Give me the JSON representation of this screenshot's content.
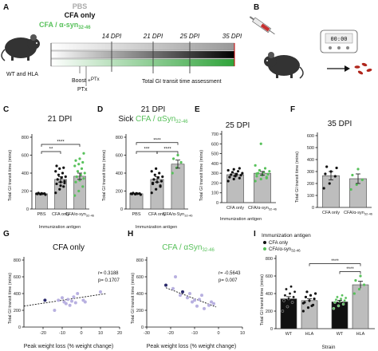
{
  "panels": {
    "A": {
      "label": "A",
      "group_top": "PBS",
      "group_mid": "CFA only",
      "group_bottom_main": "CFA / α-syn",
      "group_bottom_sub": "32-46",
      "mouse_caption": "WT and HLA",
      "days": [
        "14 DPI",
        "21 DPI",
        "25 DPI",
        "35 DPI"
      ],
      "boost_label": "Boost +",
      "ptx_label": "PTx",
      "ptx_bottom": "PTx",
      "assessment": "Total GI transit time assessment",
      "colors": {
        "pbs": "#999999",
        "cfa": "#111111",
        "syn": "#58c15b"
      }
    },
    "B": {
      "label": "B",
      "timer": "00:00"
    },
    "C": {
      "label": "C",
      "title": "21 DPI",
      "ylabel": "Total GI transit time (mins)",
      "xlabel": "Immunization antigen",
      "categories": [
        "PBS",
        "CFA only",
        "CFA/α-syn"
      ],
      "cat3_sub": "32-46",
      "sig": [
        "**",
        "****"
      ]
    },
    "D": {
      "label": "D",
      "title": "21 DPI",
      "subtitle_a": "Sick ",
      "subtitle_b": "CFA / αSyn",
      "subtitle_sub": "32-46",
      "ylabel": "Total GI transit time (mins)",
      "xlabel": "Immunization antigen",
      "categories": [
        "PBS",
        "CFA only",
        "CFA/α-Syn"
      ],
      "cat3_sub": "32-46",
      "sig": [
        "***",
        "****",
        "****"
      ]
    },
    "E": {
      "label": "E",
      "title": "25 DPI",
      "ylabel": "Total GI transit time (mins)",
      "xlabel": "Immunization antigen",
      "categories": [
        "CFA only",
        "CFA/α-syn"
      ],
      "cat2_sub": "32-46"
    },
    "F": {
      "label": "F",
      "title": "35 DPI",
      "ylabel": "Total GI transit time (mins)",
      "categories": [
        "CFA only",
        "CFA/α-syn"
      ],
      "cat2_sub": "32-46"
    },
    "G": {
      "label": "G",
      "title": "CFA only",
      "ylabel": "Total GI transit time (mins)",
      "xlabel": "Peak weight loss (% weight change)",
      "r_text": "r= 0.3188",
      "p_text": "p= 0.1707"
    },
    "H": {
      "label": "H",
      "title": "CFA / αSyn",
      "title_sub": "32-46",
      "ylabel": "Total GI transit time (mins)",
      "xlabel": "Peak weight loss (% weight change)",
      "r_text": "r= -0.5643",
      "p_text": "p= 0.007"
    },
    "I": {
      "label": "I",
      "legend_title": "Immunization antigen",
      "legend_items": [
        "CFA only",
        "CFA/α-syn"
      ],
      "legend_sub": "32-46",
      "ylabel": "Total GI transit time (mins)",
      "xlabel": "Strain",
      "categories": [
        "WT",
        "HLA",
        "WT",
        "HLA"
      ],
      "sig": [
        "****",
        "****"
      ]
    }
  },
  "chart_data": [
    {
      "type": "bar",
      "panel": "C",
      "categories": [
        "PBS",
        "CFA only",
        "CFA/α-syn32-46"
      ],
      "values": [
        170,
        330,
        365
      ],
      "errors": [
        5,
        30,
        35
      ],
      "ylim": [
        0,
        800
      ],
      "yticks": [
        0,
        200,
        400,
        600,
        800
      ],
      "colors": [
        "#bdbdbd",
        "#bdbdbd",
        "#bdbdbd"
      ],
      "dot_colors": [
        "#111111",
        "#111111",
        "#58c15b"
      ],
      "points": [
        [
          170,
          165,
          172,
          168,
          175,
          160,
          178,
          170
        ],
        [
          180,
          220,
          250,
          280,
          300,
          310,
          330,
          350,
          360,
          380,
          400,
          420,
          450,
          460,
          480,
          260,
          290
        ],
        [
          150,
          200,
          250,
          300,
          320,
          340,
          360,
          380,
          400,
          420,
          450,
          480,
          500,
          520,
          540,
          560,
          620
        ]
      ]
    },
    {
      "type": "bar",
      "panel": "D",
      "categories": [
        "PBS",
        "CFA only",
        "CFA/α-Syn32-46"
      ],
      "values": [
        170,
        330,
        500
      ],
      "errors": [
        5,
        30,
        45
      ],
      "ylim": [
        0,
        800
      ],
      "yticks": [
        0,
        200,
        400,
        600,
        800
      ],
      "dot_colors": [
        "#111111",
        "#111111",
        "#58c15b"
      ],
      "points": [
        [
          170,
          165,
          172,
          168,
          175,
          160,
          178,
          170
        ],
        [
          180,
          220,
          250,
          280,
          300,
          310,
          330,
          350,
          360,
          380,
          400,
          420,
          450,
          260,
          290
        ],
        [
          400,
          460,
          520,
          560,
          600
        ]
      ]
    },
    {
      "type": "bar",
      "panel": "E",
      "categories": [
        "CFA only",
        "CFA/α-syn32-46"
      ],
      "values": [
        285,
        300
      ],
      "errors": [
        15,
        18
      ],
      "ylim": [
        0,
        700
      ],
      "yticks": [
        0,
        100,
        200,
        300,
        400,
        500,
        600,
        700
      ],
      "dot_colors": [
        "#111111",
        "#58c15b"
      ],
      "points": [
        [
          220,
          240,
          250,
          260,
          270,
          280,
          285,
          290,
          300,
          310,
          320,
          330,
          340,
          350,
          260,
          275
        ],
        [
          220,
          240,
          260,
          270,
          280,
          290,
          300,
          310,
          320,
          330,
          350,
          380,
          600,
          250,
          295
        ]
      ]
    },
    {
      "type": "bar",
      "panel": "F",
      "categories": [
        "CFA only",
        "CFA/α-syn32-46"
      ],
      "values": [
        265,
        240
      ],
      "errors": [
        35,
        40
      ],
      "ylim": [
        0,
        600
      ],
      "yticks": [
        0,
        100,
        200,
        300,
        400,
        500,
        600
      ],
      "dot_colors": [
        "#111111",
        "#58c15b"
      ],
      "points": [
        [
          160,
          200,
          260,
          280,
          300,
          330,
          340
        ],
        [
          150,
          190,
          230,
          270,
          320
        ]
      ]
    },
    {
      "type": "scatter",
      "panel": "G",
      "xlim": [
        -30,
        20
      ],
      "ylim": [
        0,
        800
      ],
      "xticks": [
        -20,
        -10,
        0,
        10,
        20
      ],
      "yticks": [
        0,
        200,
        400,
        600,
        800
      ],
      "points": [
        {
          "x": -19,
          "y": 320,
          "c": "#2b2a6b"
        },
        {
          "x": -14,
          "y": 200,
          "c": "#b8b0e0"
        },
        {
          "x": -12,
          "y": 320,
          "c": "#b8b0e0"
        },
        {
          "x": -10,
          "y": 350,
          "c": "#b8b0e0"
        },
        {
          "x": -9,
          "y": 300,
          "c": "#b8b0e0"
        },
        {
          "x": -8,
          "y": 280,
          "c": "#b8b0e0"
        },
        {
          "x": -7,
          "y": 330,
          "c": "#b8b0e0"
        },
        {
          "x": -6,
          "y": 260,
          "c": "#b8b0e0"
        },
        {
          "x": -5,
          "y": 310,
          "c": "#b8b0e0"
        },
        {
          "x": -4,
          "y": 360,
          "c": "#b8b0e0"
        },
        {
          "x": -3,
          "y": 290,
          "c": "#b8b0e0"
        },
        {
          "x": -2,
          "y": 400,
          "c": "#b8b0e0"
        },
        {
          "x": 1,
          "y": 320,
          "c": "#b8b0e0"
        },
        {
          "x": 2,
          "y": 300,
          "c": "#b8b0e0"
        },
        {
          "x": 10,
          "y": 420,
          "c": "#b8b0e0"
        }
      ],
      "fit": [
        [
          -30,
          250
        ],
        [
          13,
          400
        ]
      ]
    },
    {
      "type": "scatter",
      "panel": "H",
      "xlim": [
        -30,
        10
      ],
      "ylim": [
        0,
        800
      ],
      "xticks": [
        -30,
        -20,
        -10,
        0,
        10
      ],
      "yticks": [
        0,
        200,
        400,
        600,
        800
      ],
      "points": [
        {
          "x": -22,
          "y": 500,
          "c": "#2b2a6b"
        },
        {
          "x": -19,
          "y": 460,
          "c": "#b8b0e0"
        },
        {
          "x": -18,
          "y": 600,
          "c": "#b8b0e0"
        },
        {
          "x": -16,
          "y": 380,
          "c": "#b8b0e0"
        },
        {
          "x": -15,
          "y": 420,
          "c": "#2b2a6b"
        },
        {
          "x": -13,
          "y": 350,
          "c": "#b8b0e0"
        },
        {
          "x": -12,
          "y": 400,
          "c": "#b8b0e0"
        },
        {
          "x": -11,
          "y": 300,
          "c": "#b8b0e0"
        },
        {
          "x": -10,
          "y": 320,
          "c": "#b8b0e0"
        },
        {
          "x": -9,
          "y": 250,
          "c": "#b8b0e0"
        },
        {
          "x": -8,
          "y": 330,
          "c": "#b8b0e0"
        },
        {
          "x": -7,
          "y": 380,
          "c": "#b8b0e0"
        },
        {
          "x": -6,
          "y": 220,
          "c": "#b8b0e0"
        },
        {
          "x": -4,
          "y": 260,
          "c": "#b8b0e0"
        },
        {
          "x": -3,
          "y": 300,
          "c": "#b8b0e0"
        },
        {
          "x": -2,
          "y": 280,
          "c": "#b8b0e0"
        }
      ],
      "fit": [
        [
          -22,
          470
        ],
        [
          -1,
          240
        ]
      ]
    },
    {
      "type": "bar",
      "panel": "I",
      "categories": [
        "WT",
        "HLA",
        "WT",
        "HLA"
      ],
      "values": [
        340,
        320,
        305,
        500
      ],
      "errors": [
        25,
        20,
        18,
        40
      ],
      "colors": [
        "#111111",
        "#bdbdbd",
        "#111111",
        "#bdbdbd"
      ],
      "dot_colors": [
        "#111111",
        "#111111",
        "#58c15b",
        "#58c15b"
      ],
      "ylim": [
        0,
        800
      ],
      "yticks": [
        0,
        200,
        400,
        600,
        800
      ],
      "points": [
        [
          200,
          250,
          300,
          320,
          340,
          360,
          380,
          400,
          420,
          450,
          480
        ],
        [
          200,
          240,
          270,
          300,
          320,
          340,
          360,
          380,
          400,
          420,
          260,
          290
        ],
        [
          230,
          260,
          280,
          300,
          310,
          320,
          330,
          340,
          350,
          360,
          380
        ],
        [
          400,
          450,
          500,
          550,
          600
        ]
      ]
    }
  ]
}
